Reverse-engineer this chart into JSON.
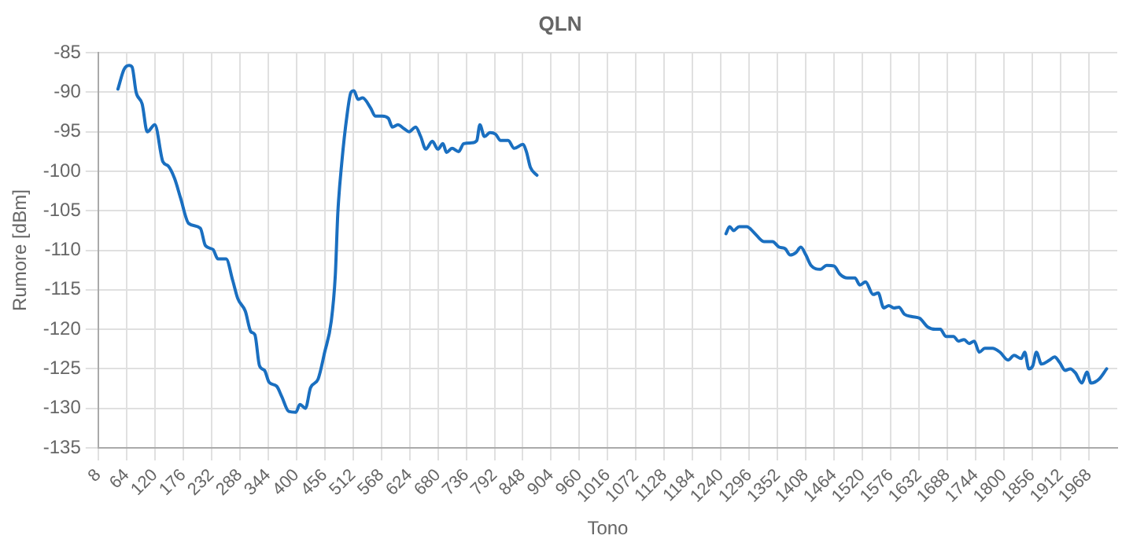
{
  "chart_data": {
    "type": "line",
    "title": "QLN",
    "xlabel": "Tono",
    "ylabel": "Rumore [dBm]",
    "xlim": [
      8,
      2024
    ],
    "xticks": [
      8,
      64,
      120,
      176,
      232,
      288,
      344,
      400,
      456,
      512,
      568,
      624,
      680,
      736,
      792,
      848,
      904,
      960,
      1016,
      1072,
      1128,
      1184,
      1240,
      1296,
      1352,
      1408,
      1464,
      1520,
      1576,
      1632,
      1688,
      1744,
      1800,
      1856,
      1912,
      1968
    ],
    "ylim": [
      -135,
      -85
    ],
    "yticks": [
      -135,
      -130,
      -125,
      -120,
      -115,
      -110,
      -105,
      -100,
      -95,
      -90,
      -85
    ],
    "grid": true,
    "legend": false,
    "marker": "none",
    "line_style": "solid",
    "series": [
      {
        "color": "#1a6fc0",
        "x": [
          47,
          59,
          69,
          75,
          83,
          95,
          105,
          120,
          136,
          146,
          159,
          171,
          187,
          210,
          220,
          235,
          245,
          261,
          274,
          284,
          299,
          310,
          318,
          327,
          337,
          346,
          361,
          371,
          385,
          399,
          407,
          418,
          428,
          443,
          456,
          469,
          477,
          482,
          490,
          500,
          508,
          514,
          522,
          531,
          547,
          556,
          570,
          582,
          590,
          601,
          613,
          623,
          636,
          646,
          656,
          669,
          680,
          690,
          697,
          708,
          721,
          731,
          747,
          757,
          763,
          772,
          783,
          794,
          804,
          819,
          831,
          848,
          855,
          863,
          876,
          1060,
          1250,
          1257,
          1265,
          1276,
          1291,
          1306,
          1325,
          1342,
          1355,
          1367,
          1377,
          1388,
          1398,
          1408,
          1418,
          1437,
          1449,
          1464,
          1475,
          1490,
          1505,
          1515,
          1526,
          1541,
          1551,
          1562,
          1572,
          1582,
          1592,
          1603,
          1618,
          1633,
          1649,
          1664,
          1674,
          1685,
          1700,
          1710,
          1721,
          1731,
          1741,
          1751,
          1762,
          1777,
          1792,
          1808,
          1820,
          1834,
          1841,
          1849,
          1857,
          1864,
          1874,
          1890,
          1900,
          1910,
          1921,
          1931,
          1941,
          1954,
          1964,
          1972,
          1988,
          2003
        ],
        "values": [
          -89.6,
          -87.1,
          -86.6,
          -86.8,
          -90.0,
          -91.5,
          -95.0,
          -94.1,
          -98.8,
          -99.3,
          -100.9,
          -103.4,
          -106.6,
          -107.2,
          -109.4,
          -109.9,
          -111.1,
          -111.1,
          -113.8,
          -116.1,
          -117.7,
          -120.3,
          -120.7,
          -124.6,
          -125.2,
          -126.7,
          -127.2,
          -128.5,
          -130.4,
          -130.5,
          -129.5,
          -130.0,
          -127.4,
          -126.3,
          -122.9,
          -119.0,
          -113.2,
          -105.3,
          -98.8,
          -93.0,
          -90.0,
          -89.8,
          -90.9,
          -90.7,
          -92.0,
          -93.0,
          -93.0,
          -93.3,
          -94.4,
          -94.1,
          -94.6,
          -95.0,
          -94.4,
          -95.6,
          -97.2,
          -96.2,
          -97.2,
          -96.5,
          -97.6,
          -97.1,
          -97.5,
          -96.5,
          -96.4,
          -96.1,
          -94.1,
          -95.6,
          -95.1,
          -95.3,
          -96.1,
          -96.1,
          -97.1,
          -96.6,
          -97.5,
          -99.5,
          -100.5,
          null,
          -107.9,
          -107.0,
          -107.5,
          -107.0,
          -107.0,
          -107.8,
          -108.9,
          -108.9,
          -109.6,
          -109.8,
          -110.6,
          -110.3,
          -109.6,
          -110.6,
          -111.9,
          -112.4,
          -111.9,
          -112.0,
          -113.0,
          -113.5,
          -113.5,
          -114.4,
          -114.0,
          -115.6,
          -115.4,
          -117.3,
          -117.0,
          -117.3,
          -117.2,
          -118.1,
          -118.4,
          -118.6,
          -119.7,
          -120.0,
          -120.0,
          -120.9,
          -120.9,
          -121.5,
          -121.3,
          -121.8,
          -121.5,
          -122.9,
          -122.4,
          -122.4,
          -122.9,
          -123.9,
          -123.3,
          -123.7,
          -122.9,
          -125.0,
          -124.6,
          -122.9,
          -124.4,
          -123.9,
          -123.5,
          -124.2,
          -125.2,
          -125.0,
          -125.5,
          -126.8,
          -125.4,
          -126.8,
          -126.3,
          -125.0
        ]
      }
    ]
  }
}
